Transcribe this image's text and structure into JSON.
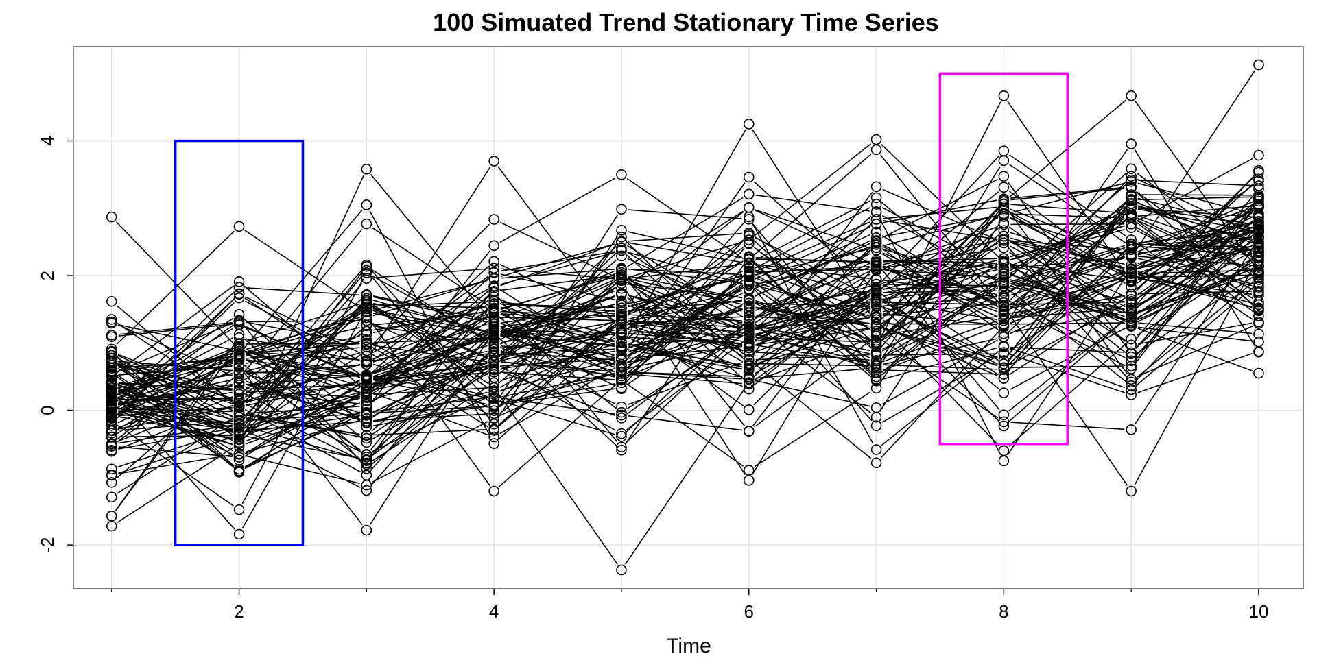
{
  "chart_data": {
    "type": "line",
    "title": "100 Simuated Trend Stationary Time Series",
    "xlabel": "Time",
    "ylabel": "",
    "xlim": [
      0.7,
      10.35
    ],
    "ylim": [
      -2.65,
      5.4
    ],
    "x_ticks": [
      2,
      4,
      6,
      8,
      10
    ],
    "x_minor_ticks": [
      1,
      3,
      5,
      7,
      9
    ],
    "y_ticks": [
      -2,
      0,
      2,
      4
    ],
    "grid": true,
    "grid_x": [
      1,
      2,
      3,
      4,
      5,
      6,
      7,
      8,
      9,
      10
    ],
    "n_series": 100,
    "x": [
      1,
      2,
      3,
      4,
      5,
      6,
      7,
      8,
      9,
      10
    ],
    "series_center": [
      0.1,
      0.3,
      0.6,
      1.0,
      1.3,
      1.4,
      1.6,
      1.75,
      2.1,
      2.4
    ],
    "series_spread": [
      0.9,
      0.9,
      1.2,
      1.0,
      1.1,
      1.1,
      1.1,
      1.2,
      1.1,
      0.8
    ],
    "extremes": [
      {
        "x": 1,
        "y": 2.87
      },
      {
        "x": 1,
        "y": -1.72
      },
      {
        "x": 2,
        "y": 2.73
      },
      {
        "x": 2,
        "y": -1.84
      },
      {
        "x": 3,
        "y": 3.58
      },
      {
        "x": 3,
        "y": -1.78
      },
      {
        "x": 4,
        "y": 3.7
      },
      {
        "x": 4,
        "y": -1.2
      },
      {
        "x": 5,
        "y": 3.5
      },
      {
        "x": 5,
        "y": -2.37
      },
      {
        "x": 6,
        "y": 4.25
      },
      {
        "x": 6,
        "y": -1.04
      },
      {
        "x": 7,
        "y": 4.02
      },
      {
        "x": 7,
        "y": -0.78
      },
      {
        "x": 8,
        "y": 4.67
      },
      {
        "x": 8,
        "y": -0.75
      },
      {
        "x": 9,
        "y": 4.67
      },
      {
        "x": 9,
        "y": -1.2
      },
      {
        "x": 10,
        "y": 5.13
      },
      {
        "x": 10,
        "y": 0.55
      }
    ],
    "highlight_boxes": [
      {
        "name": "box-time-2",
        "x": [
          1.5,
          2.5
        ],
        "y": [
          -2,
          4
        ],
        "color": "#0000ff"
      },
      {
        "name": "box-time-8",
        "x": [
          7.5,
          8.5
        ],
        "y": [
          -0.5,
          5
        ],
        "color": "#ff00ff"
      }
    ],
    "colors": {
      "line": "#000000",
      "grid": "#e0e0e0",
      "frame": "#808080"
    }
  }
}
